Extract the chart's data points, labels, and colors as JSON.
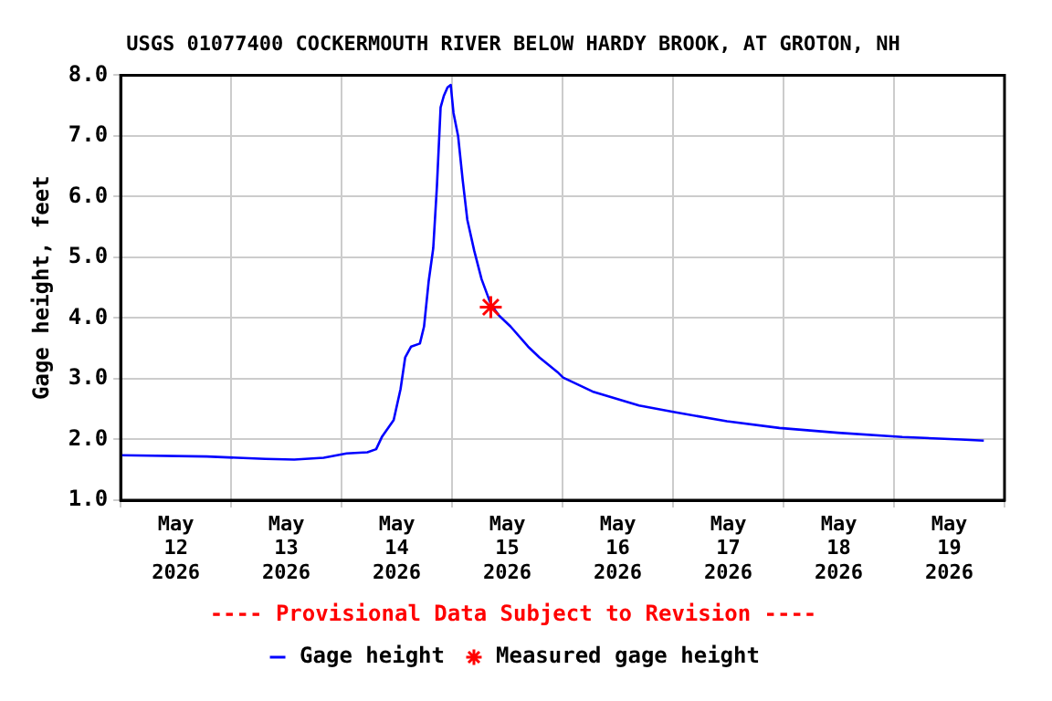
{
  "chart_data": {
    "type": "line",
    "title": "USGS 01077400 COCKERMOUTH RIVER BELOW HARDY BROOK, AT GROTON, NH",
    "ylabel": "Gage height, feet",
    "annotations": [
      "---- Provisional Data Subject to Revision ----"
    ],
    "xlim": [
      "2026-05-12T00:00",
      "2026-05-20T00:00"
    ],
    "xticks": [
      {
        "value": "2026-05-12T00:00",
        "label": null
      },
      {
        "value": "2026-05-12T12:00",
        "label": "May\n12\n2026"
      },
      {
        "value": "2026-05-13T00:00",
        "label": null
      },
      {
        "value": "2026-05-13T12:00",
        "label": "May\n13\n2026"
      },
      {
        "value": "2026-05-14T00:00",
        "label": null
      },
      {
        "value": "2026-05-14T12:00",
        "label": "May\n14\n2026"
      },
      {
        "value": "2026-05-15T00:00",
        "label": null
      },
      {
        "value": "2026-05-15T12:00",
        "label": "May\n15\n2026"
      },
      {
        "value": "2026-05-16T00:00",
        "label": null
      },
      {
        "value": "2026-05-16T12:00",
        "label": "May\n16\n2026"
      },
      {
        "value": "2026-05-17T00:00",
        "label": null
      },
      {
        "value": "2026-05-17T12:00",
        "label": "May\n17\n2026"
      },
      {
        "value": "2026-05-18T00:00",
        "label": null
      },
      {
        "value": "2026-05-18T12:00",
        "label": "May\n18\n2026"
      },
      {
        "value": "2026-05-19T00:00",
        "label": null
      },
      {
        "value": "2026-05-19T12:00",
        "label": "May\n19\n2026"
      },
      {
        "value": "2026-05-20T00:00",
        "label": null
      }
    ],
    "ylim": [
      1,
      8
    ],
    "yticks": [
      {
        "value": 1,
        "label": "1.0"
      },
      {
        "value": 2,
        "label": "2.0"
      },
      {
        "value": 3,
        "label": "3.0"
      },
      {
        "value": 4,
        "label": "4.0"
      },
      {
        "value": 5,
        "label": "5.0"
      },
      {
        "value": 6,
        "label": "6.0"
      },
      {
        "value": 7,
        "label": "7.0"
      },
      {
        "value": 8,
        "label": "8.0"
      }
    ],
    "grid": true,
    "legend": "bottom",
    "series": [
      {
        "name": "Gage height",
        "type": "line",
        "color": "#0000ff",
        "marker": "none",
        "line_style": "solid",
        "x": [
          "2026-05-12T00:15",
          "2026-05-12T18:42",
          "2026-05-13T07:24",
          "2026-05-13T13:42",
          "2026-05-13T20:06",
          "2026-05-14T01:06",
          "2026-05-14T05:36",
          "2026-05-14T07:30",
          "2026-05-14T08:48",
          "2026-05-14T11:18",
          "2026-05-14T12:48",
          "2026-05-14T13:48",
          "2026-05-14T15:06",
          "2026-05-14T17:00",
          "2026-05-14T17:54",
          "2026-05-14T18:54",
          "2026-05-14T19:54",
          "2026-05-14T20:42",
          "2026-05-14T21:30",
          "2026-05-14T22:12",
          "2026-05-14T23:00",
          "2026-05-14T23:42",
          "2026-05-15T00:18",
          "2026-05-15T01:18",
          "2026-05-15T02:18",
          "2026-05-15T03:18",
          "2026-05-15T04:48",
          "2026-05-15T06:24",
          "2026-05-15T08:24",
          "2026-05-15T10:12",
          "2026-05-15T12:42",
          "2026-05-15T16:30",
          "2026-05-15T19:00",
          "2026-05-15T22:54",
          "2026-05-16T00:06",
          "2026-05-16T06:30",
          "2026-05-16T16:36",
          "2026-05-17T00:18",
          "2026-05-17T11:42",
          "2026-05-17T23:06",
          "2026-05-18T11:48",
          "2026-05-19T01:48",
          "2026-05-19T14:30",
          "2026-05-19T19:30"
        ],
        "values": [
          1.74,
          1.72,
          1.68,
          1.67,
          1.7,
          1.77,
          1.79,
          1.84,
          2.05,
          2.32,
          2.83,
          3.35,
          3.53,
          3.58,
          3.86,
          4.6,
          5.15,
          6.17,
          7.47,
          7.66,
          7.8,
          7.84,
          7.38,
          7.0,
          6.27,
          5.62,
          5.11,
          4.64,
          4.23,
          4.04,
          3.86,
          3.53,
          3.35,
          3.11,
          3.02,
          2.79,
          2.56,
          2.45,
          2.3,
          2.19,
          2.11,
          2.04,
          2.0,
          1.98
        ]
      },
      {
        "name": "Measured gage height",
        "type": "scatter",
        "color": "#ff0000",
        "marker": "cross",
        "x": [
          "2026-05-15T08:24"
        ],
        "values": [
          4.18
        ]
      }
    ]
  }
}
